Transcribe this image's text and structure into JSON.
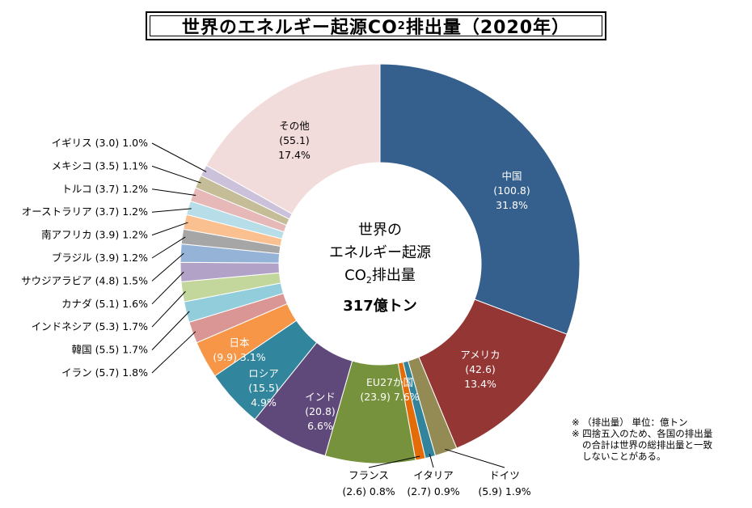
{
  "title": {
    "pre": "世界のエネルギー起源CO",
    "sub": "2",
    "post": "排出量（2020年）"
  },
  "center": {
    "line1": "世界の",
    "line2": "エネルギー起源",
    "line3_pre": "CO",
    "line3_sub": "2",
    "line3_post": "排出量",
    "total": "317億トン"
  },
  "notes": {
    "line1": "※ （排出量） 単位：億トン",
    "line2": "※ 四捨五入のため、各国の排出量",
    "line3": "の合計は世界の総排出量と一致",
    "line4": "しないことがある。"
  },
  "chart_data": {
    "type": "pie",
    "variant": "donut",
    "unit": "億トン",
    "total": 317,
    "slices": [
      {
        "name": "中国",
        "value": 100.8,
        "percent": 31.8,
        "color": "#355f8d",
        "value_text": "(100.8)",
        "percent_text": "31.8%"
      },
      {
        "name": "アメリカ",
        "value": 42.6,
        "percent": 13.4,
        "color": "#943634",
        "value_text": "(42.6)",
        "percent_text": "13.4%"
      },
      {
        "name": "ドイツ",
        "value": 5.9,
        "percent": 1.9,
        "color": "#948a54",
        "value_text": "(5.9)",
        "percent_text": "1.9%"
      },
      {
        "name": "イタリア",
        "value": 2.7,
        "percent": 0.9,
        "color": "#31849b",
        "value_text": "(2.7)",
        "percent_text": "0.9%"
      },
      {
        "name": "フランス",
        "value": 2.6,
        "percent": 0.8,
        "color": "#e36c09",
        "value_text": "(2.6)",
        "percent_text": "0.8%"
      },
      {
        "name": "EU27か国",
        "value": 23.9,
        "percent": 7.6,
        "color": "#76923c",
        "value_text": "(23.9)",
        "percent_text": "7.6%"
      },
      {
        "name": "インド",
        "value": 20.8,
        "percent": 6.6,
        "color": "#5f497a",
        "value_text": "(20.8)",
        "percent_text": "6.6%"
      },
      {
        "name": "ロシア",
        "value": 15.5,
        "percent": 4.9,
        "color": "#31859c",
        "value_text": "(15.5)",
        "percent_text": "4.9%"
      },
      {
        "name": "日本",
        "value": 9.9,
        "percent": 3.1,
        "color": "#f79646",
        "value_text": "(9.9)",
        "percent_text": "3.1%"
      },
      {
        "name": "イラン",
        "value": 5.7,
        "percent": 1.8,
        "color": "#d99694",
        "value_text": "(5.7)",
        "percent_text": "1.8%"
      },
      {
        "name": "韓国",
        "value": 5.5,
        "percent": 1.7,
        "color": "#92cddc",
        "value_text": "(5.5)",
        "percent_text": "1.7%"
      },
      {
        "name": "インドネシア",
        "value": 5.3,
        "percent": 1.7,
        "color": "#c3d69b",
        "value_text": "(5.3)",
        "percent_text": "1.7%"
      },
      {
        "name": "カナダ",
        "value": 5.1,
        "percent": 1.6,
        "color": "#b3a2c7",
        "value_text": "(5.1)",
        "percent_text": "1.6%"
      },
      {
        "name": "サウジアラビア",
        "value": 4.8,
        "percent": 1.5,
        "color": "#95b3d7",
        "value_text": "(4.8)",
        "percent_text": "1.5%"
      },
      {
        "name": "ブラジル",
        "value": 3.9,
        "percent": 1.2,
        "color": "#a6a6a6",
        "value_text": "(3.9)",
        "percent_text": "1.2%"
      },
      {
        "name": "南アフリカ",
        "value": 3.9,
        "percent": 1.2,
        "color": "#fac090",
        "value_text": "(3.9)",
        "percent_text": "1.2%"
      },
      {
        "name": "オーストラリア",
        "value": 3.7,
        "percent": 1.2,
        "color": "#b7dee8",
        "value_text": "(3.7)",
        "percent_text": "1.2%"
      },
      {
        "name": "トルコ",
        "value": 3.7,
        "percent": 1.2,
        "color": "#e6b9b8",
        "value_text": "(3.7)",
        "percent_text": "1.2%"
      },
      {
        "name": "メキシコ",
        "value": 3.5,
        "percent": 1.1,
        "color": "#c4bd97",
        "value_text": "(3.5)",
        "percent_text": "1.1%"
      },
      {
        "name": "イギリス",
        "value": 3.0,
        "percent": 1.0,
        "color": "#ccc1da",
        "value_text": "(3.0)",
        "percent_text": "1.0%"
      },
      {
        "name": "その他",
        "value": 55.1,
        "percent": 17.4,
        "color": "#f2dcdb",
        "value_text": "(55.1)",
        "percent_text": "17.4%"
      }
    ]
  }
}
